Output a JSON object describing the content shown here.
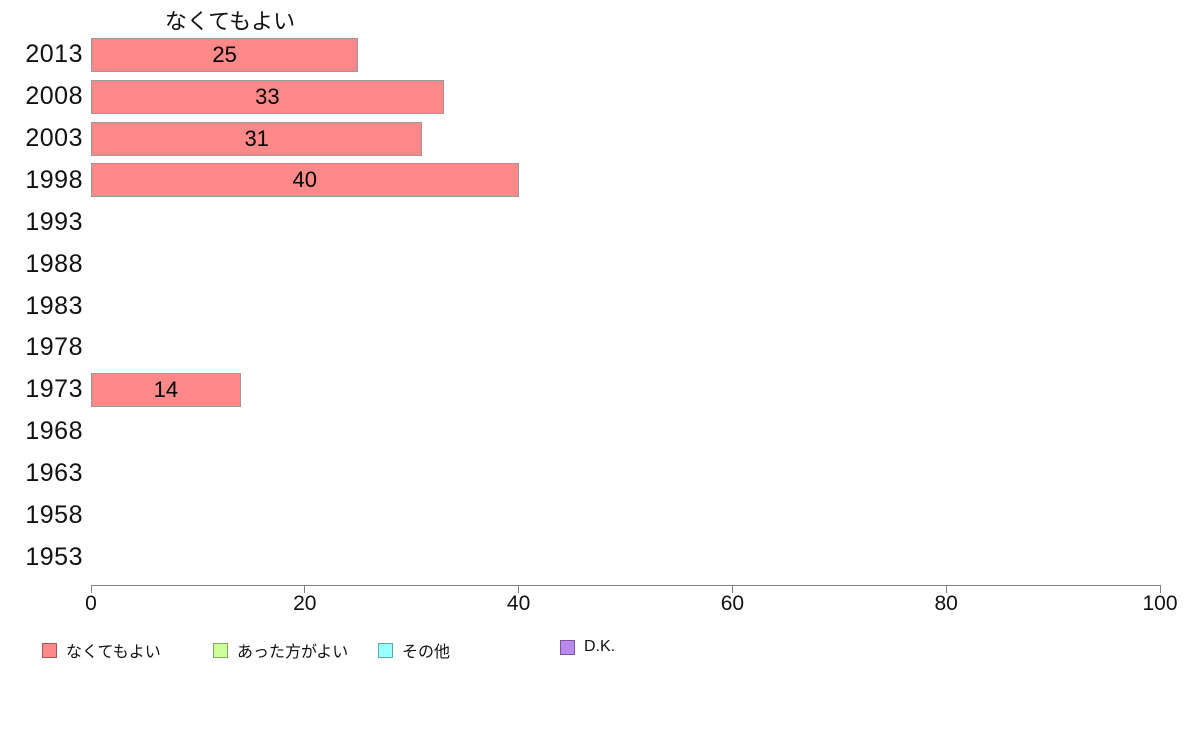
{
  "page": {
    "background": "#ffffff"
  },
  "chart_data": {
    "type": "bar",
    "orientation": "horizontal",
    "title": "なくてもよい",
    "categories": [
      "2013",
      "2008",
      "2003",
      "1998",
      "1993",
      "1988",
      "1983",
      "1978",
      "1973",
      "1968",
      "1963",
      "1958",
      "1953"
    ],
    "series": [
      {
        "name": "なくてもよい",
        "color": "#ff8888",
        "border_color": "#999999",
        "values": [
          25,
          33,
          31,
          40,
          null,
          null,
          null,
          null,
          14,
          null,
          null,
          null,
          null
        ]
      }
    ],
    "value_labels_shown": true,
    "xlabel": "",
    "ylabel": "",
    "xlim": [
      0,
      100
    ],
    "xticks": [
      0,
      20,
      40,
      60,
      80,
      100
    ],
    "grid": false,
    "axis_color": "#808080",
    "text_color": "#111111",
    "legend_position": "bottom",
    "legend": [
      {
        "label": "なくてもよい",
        "color": "#ff8888"
      },
      {
        "label": "あった方がよい",
        "color": "#ccff99"
      },
      {
        "label": "その他",
        "color": "#99ffff"
      },
      {
        "label": "D.K.",
        "color": "#bb88ee"
      }
    ]
  }
}
